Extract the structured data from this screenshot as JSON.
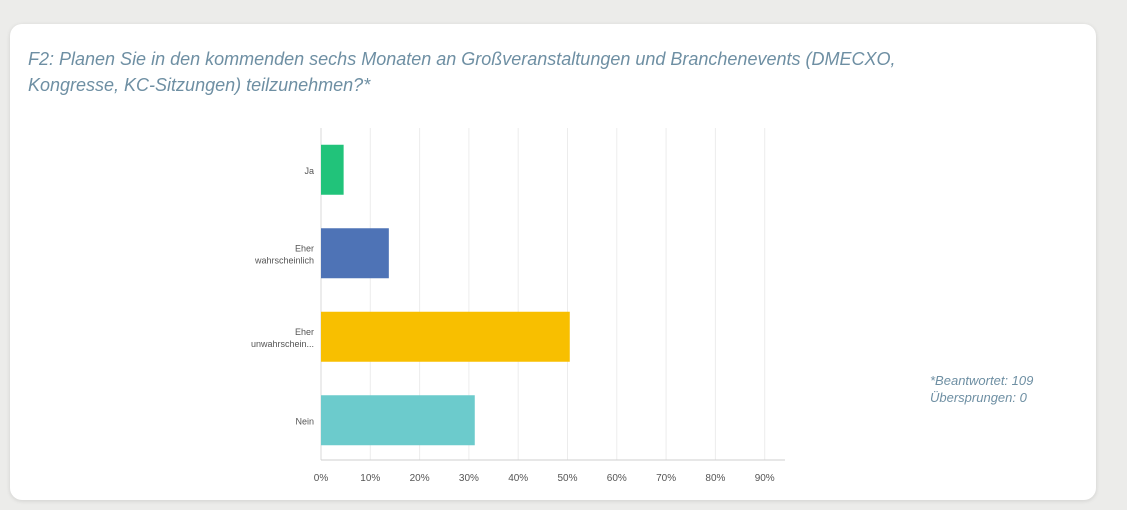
{
  "question": {
    "title_line1": "F2: Planen Sie in den kommenden sechs Monaten an Großveranstaltungen und Branchenevents (DMECXO,",
    "title_line2": "Kongresse, KC-Sitzungen) teilzunehmen?*"
  },
  "stats": {
    "answered": "*Beantwortet: 109",
    "skipped": "Übersprungen: 0"
  },
  "chart_data": {
    "type": "bar",
    "orientation": "horizontal",
    "title": "F2: Planen Sie in den kommenden sechs Monaten an Großveranstaltungen und Branchenevents (DMECXO, Kongresse, KC-Sitzungen) teilzunehmen?*",
    "categories": [
      [
        "Ja"
      ],
      [
        "Eher",
        "wahrscheinlich"
      ],
      [
        "Eher",
        "unwahrschein..."
      ],
      [
        "Nein"
      ]
    ],
    "values": [
      4.59,
      13.76,
      50.46,
      31.19
    ],
    "colors": [
      "#21c37a",
      "#4e73b6",
      "#f8bf00",
      "#6ccbcc"
    ],
    "xlim": [
      0,
      90
    ],
    "ticks": [
      "0%",
      "10%",
      "20%",
      "30%",
      "40%",
      "50%",
      "60%",
      "70%",
      "80%",
      "90%"
    ],
    "tick_values": [
      0,
      10,
      20,
      30,
      40,
      50,
      60,
      70,
      80,
      90
    ],
    "grid": true,
    "legend": "none"
  }
}
